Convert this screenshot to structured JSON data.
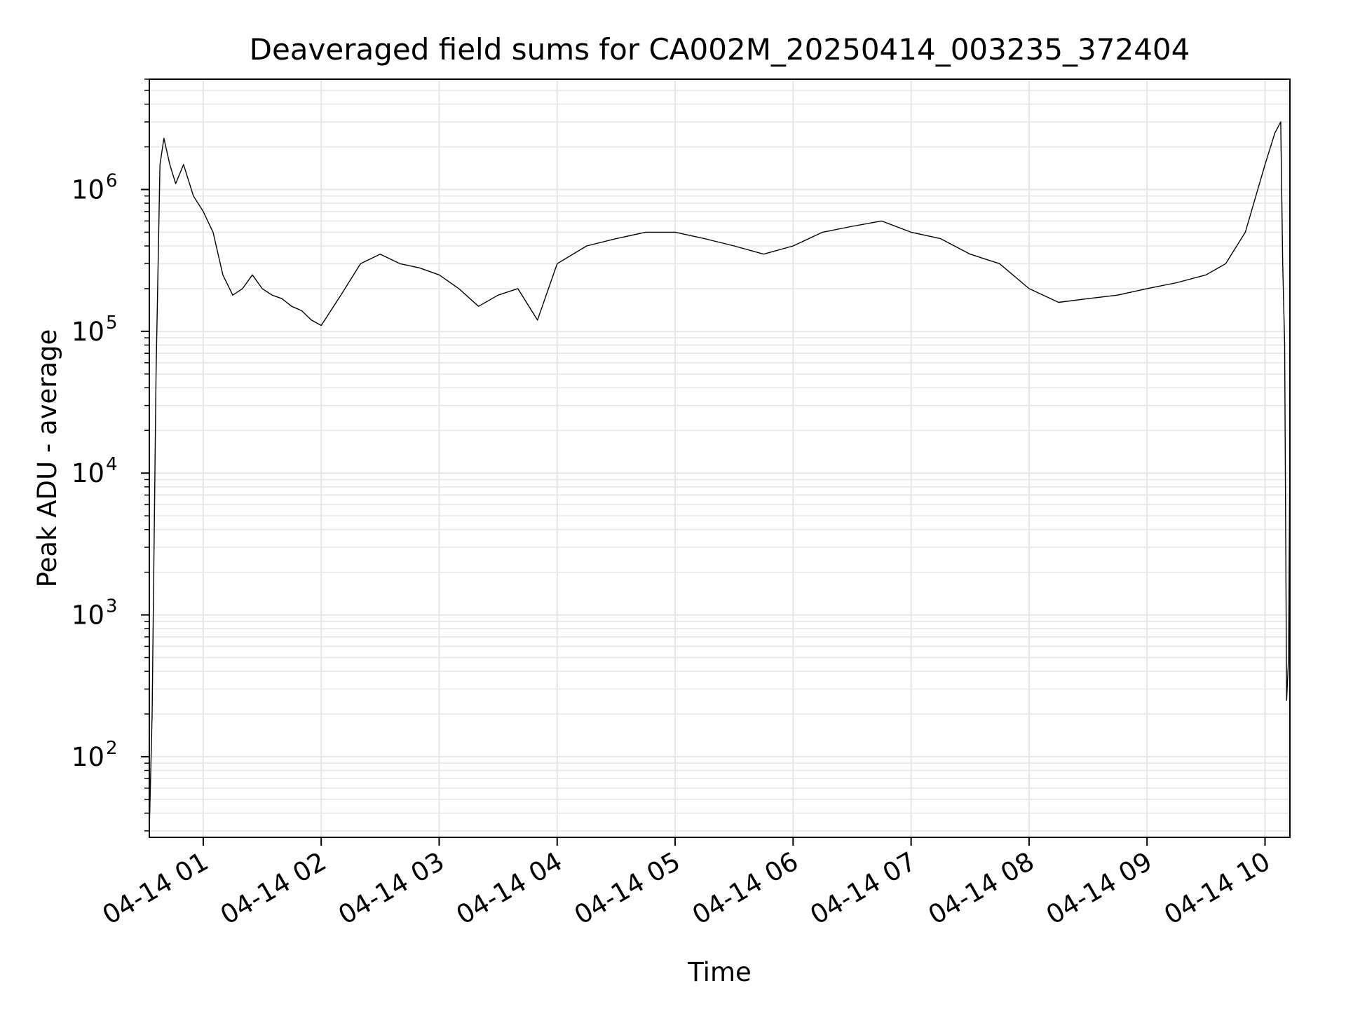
{
  "chart_data": {
    "type": "line",
    "title": "Deaveraged field sums for CA002M_20250414_003235_372404",
    "xlabel": "Time",
    "ylabel": "Peak ADU - average",
    "yscale": "log",
    "ylim": [
      27,
      6000000
    ],
    "xlim": [
      "04-14 00:32:35",
      "04-14 10:12:40"
    ],
    "grid": true,
    "line_color": "#000000",
    "grid_color": "#e6e6e6",
    "x_ticks": [
      "04-14 01",
      "04-14 02",
      "04-14 03",
      "04-14 04",
      "04-14 05",
      "04-14 06",
      "04-14 07",
      "04-14 08",
      "04-14 09",
      "04-14 10"
    ],
    "y_ticks": [
      {
        "base": "10",
        "exp": "2",
        "value": 100
      },
      {
        "base": "10",
        "exp": "3",
        "value": 1000
      },
      {
        "base": "10",
        "exp": "4",
        "value": 10000
      },
      {
        "base": "10",
        "exp": "5",
        "value": 100000
      },
      {
        "base": "10",
        "exp": "6",
        "value": 1000000
      }
    ],
    "series": [
      {
        "x": [
          "04-14 00:32:35",
          "04-14 00:34",
          "04-14 00:36",
          "04-14 00:38",
          "04-14 00:40",
          "04-14 00:43",
          "04-14 00:46",
          "04-14 00:50",
          "04-14 00:55",
          "04-14 01:00",
          "04-14 01:05",
          "04-14 01:10",
          "04-14 01:15",
          "04-14 01:20",
          "04-14 01:25",
          "04-14 01:30",
          "04-14 01:35",
          "04-14 01:40",
          "04-14 01:45",
          "04-14 01:50",
          "04-14 01:55",
          "04-14 02:00",
          "04-14 02:10",
          "04-14 02:20",
          "04-14 02:30",
          "04-14 02:40",
          "04-14 02:50",
          "04-14 03:00",
          "04-14 03:10",
          "04-14 03:20",
          "04-14 03:30",
          "04-14 03:40",
          "04-14 03:50",
          "04-14 04:00",
          "04-14 04:15",
          "04-14 04:30",
          "04-14 04:45",
          "04-14 05:00",
          "04-14 05:15",
          "04-14 05:30",
          "04-14 05:45",
          "04-14 06:00",
          "04-14 06:15",
          "04-14 06:30",
          "04-14 06:45",
          "04-14 07:00",
          "04-14 07:15",
          "04-14 07:30",
          "04-14 07:45",
          "04-14 08:00",
          "04-14 08:15",
          "04-14 08:30",
          "04-14 08:45",
          "04-14 09:00",
          "04-14 09:15",
          "04-14 09:30",
          "04-14 09:40",
          "04-14 09:50",
          "04-14 10:00",
          "04-14 10:05",
          "04-14 10:08",
          "04-14 10:09",
          "04-14 10:10",
          "04-14 10:11",
          "04-14 10:12",
          "04-14 10:12:40"
        ],
        "y": [
          30,
          200,
          50000,
          1500000,
          2300000,
          1500000,
          1100000,
          1500000,
          900000,
          700000,
          500000,
          250000,
          180000,
          200000,
          250000,
          200000,
          180000,
          170000,
          150000,
          140000,
          120000,
          110000,
          180000,
          300000,
          350000,
          300000,
          280000,
          250000,
          200000,
          150000,
          180000,
          200000,
          120000,
          300000,
          400000,
          450000,
          500000,
          500000,
          450000,
          400000,
          350000,
          400000,
          500000,
          550000,
          600000,
          500000,
          450000,
          350000,
          300000,
          200000,
          160000,
          170000,
          180000,
          200000,
          220000,
          250000,
          300000,
          500000,
          1500000,
          2500000,
          3000000,
          300000,
          80000,
          250,
          500,
          15000
        ]
      }
    ]
  }
}
